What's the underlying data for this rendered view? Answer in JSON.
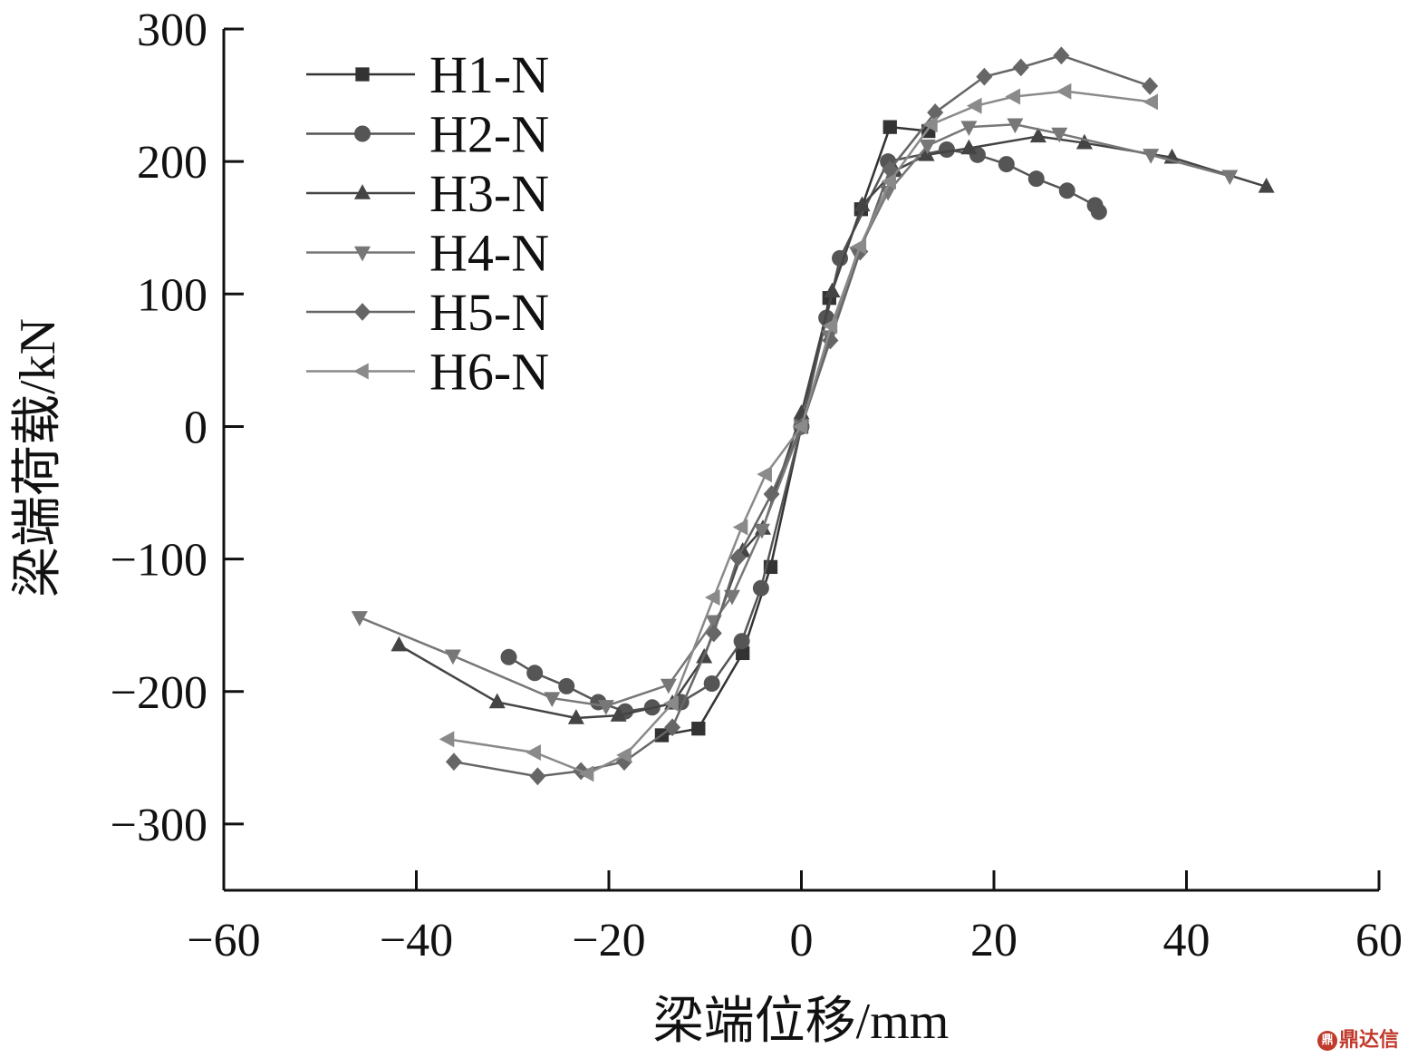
{
  "chart_data": {
    "type": "line",
    "xlabel": "梁端位移/mm",
    "ylabel": "梁端荷载/kN",
    "xlim": [
      -60,
      60
    ],
    "ylim": [
      -350,
      300
    ],
    "xticks": [
      -60,
      -40,
      -20,
      0,
      20,
      40,
      60
    ],
    "yticks": [
      300,
      200,
      100,
      0,
      -100,
      -200,
      -300
    ],
    "xtick_labels": [
      "−60",
      "−40",
      "−20",
      "0",
      "20",
      "40",
      "60"
    ],
    "ytick_labels": [
      "300",
      "200",
      "100",
      "0",
      "−100",
      "−200",
      "−300"
    ],
    "legend_position": "top-left",
    "series": [
      {
        "name": "H1-N",
        "marker": "square",
        "color": "#333333",
        "x": [
          -14.5,
          -10.7,
          -6.1,
          -3.2,
          0,
          2.9,
          6.2,
          9.2,
          13.2
        ],
        "y": [
          -233,
          -228,
          -171,
          -106,
          0,
          97,
          164,
          226,
          223
        ]
      },
      {
        "name": "H2-N",
        "marker": "circle",
        "color": "#555555",
        "x": [
          -30.4,
          -27.7,
          -24.4,
          -21.1,
          -18.3,
          -15.5,
          -12.5,
          -9.3,
          -6.2,
          -4.2,
          0,
          2.6,
          4,
          9,
          15.1,
          18.3,
          21.3,
          24.4,
          27.6,
          30.5,
          30.9
        ],
        "y": [
          -174,
          -186,
          -196,
          -208,
          -215,
          -212,
          -208,
          -194,
          -162,
          -122,
          0,
          82,
          127,
          200,
          209,
          205,
          198,
          187,
          178,
          167,
          162
        ]
      },
      {
        "name": "H3-N",
        "marker": "triangle-up",
        "color": "#444444",
        "x": [
          -41.8,
          -31.6,
          -23.4,
          -19,
          -13.4,
          -10.1,
          -6.1,
          -4,
          0,
          3.2,
          6.3,
          9.7,
          13,
          17.4,
          24.6,
          29.4,
          38.5,
          48.3
        ],
        "y": [
          -165,
          -208,
          -220,
          -218,
          -209,
          -174,
          -94,
          -77,
          10,
          102,
          167,
          193,
          205,
          210,
          219,
          214,
          203,
          181
        ]
      },
      {
        "name": "H4-N",
        "marker": "triangle-down",
        "color": "#777777",
        "x": [
          -45.9,
          -36.2,
          -25.9,
          -20.3,
          -13.8,
          -9.1,
          -7.2,
          -4.1,
          0,
          2.9,
          5.8,
          9,
          13.1,
          17.4,
          22.2,
          26.8,
          36.3,
          44.5
        ],
        "y": [
          -144,
          -173,
          -205,
          -211,
          -195,
          -147,
          -128,
          -78,
          0,
          68,
          131,
          177,
          212,
          226,
          228,
          221,
          205,
          189
        ]
      },
      {
        "name": "H5-N",
        "marker": "diamond",
        "color": "#666666",
        "x": [
          -36.1,
          -27.4,
          -22.9,
          -18.4,
          -13.4,
          -9.1,
          -6.6,
          -3.1,
          0,
          3,
          6.1,
          9.2,
          13.9,
          19,
          22.8,
          27,
          36.2
        ],
        "y": [
          -253,
          -264,
          -260,
          -253,
          -227,
          -156,
          -99,
          -51,
          0,
          65,
          132,
          194,
          237,
          264,
          271,
          280,
          257
        ]
      },
      {
        "name": "H6-N",
        "marker": "triangle-left",
        "color": "#8a8a8a",
        "x": [
          -36.7,
          -27.7,
          -22.2,
          -18.3,
          -13.4,
          -9.1,
          -6.2,
          -3.7,
          0,
          3.1,
          6.1,
          9.2,
          13.5,
          18.1,
          22.1,
          27.4,
          36.4
        ],
        "y": [
          -236,
          -246,
          -262,
          -248,
          -209,
          -129,
          -76,
          -36,
          0,
          76,
          136,
          185,
          228,
          242,
          249,
          253,
          245
        ]
      }
    ]
  },
  "watermark": {
    "logo": "鼎",
    "text": "鼎达信"
  }
}
